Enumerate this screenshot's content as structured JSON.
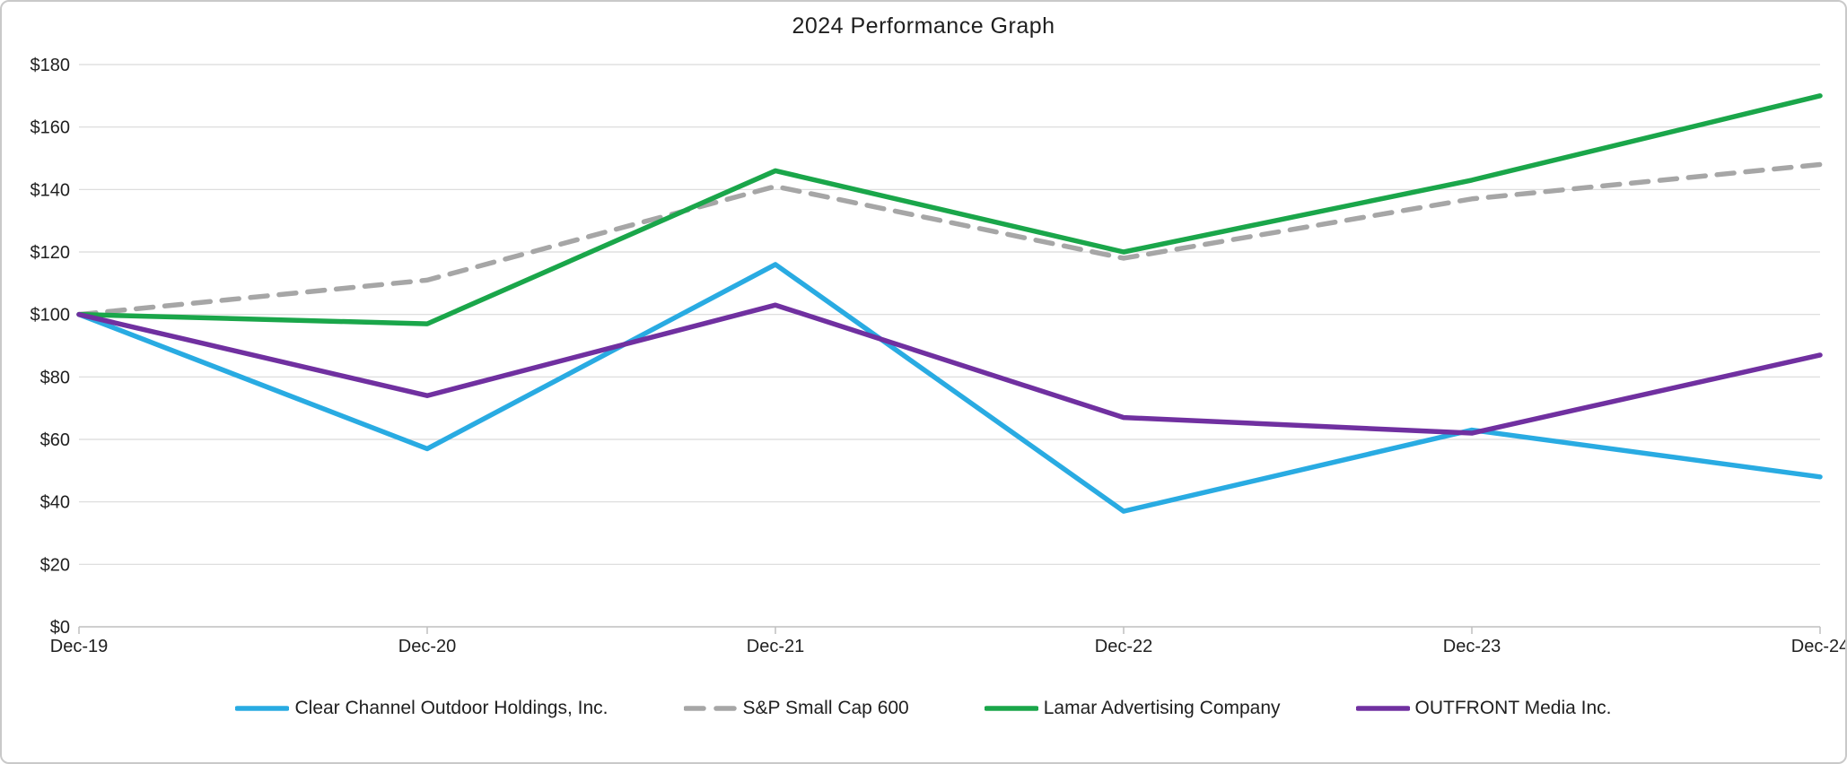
{
  "title": "2024 Performance Graph",
  "chart_data": {
    "type": "line",
    "title": "2024 Performance Graph",
    "xlabel": "",
    "ylabel": "",
    "categories": [
      "Dec-19",
      "Dec-20",
      "Dec-21",
      "Dec-22",
      "Dec-23",
      "Dec-24"
    ],
    "series": [
      {
        "name": "Clear Channel Outdoor Holdings, Inc.",
        "color": "#29ABE2",
        "style": "solid",
        "values": [
          100,
          57,
          116,
          37,
          63,
          48
        ]
      },
      {
        "name": "S&P Small Cap 600",
        "color": "#A6A6A6",
        "style": "dashed",
        "values": [
          100,
          111,
          141,
          118,
          137,
          148
        ]
      },
      {
        "name": "Lamar Advertising Company",
        "color": "#1AA64A",
        "style": "solid",
        "values": [
          100,
          97,
          146,
          120,
          143,
          170
        ]
      },
      {
        "name": "OUTFRONT Media Inc.",
        "color": "#7030A0",
        "style": "solid",
        "values": [
          100,
          74,
          103,
          67,
          62,
          87
        ]
      }
    ],
    "ylim": [
      0,
      180
    ],
    "ytick_step": 20,
    "ytick_labels": [
      "$0",
      "$20",
      "$40",
      "$60",
      "$80",
      "$100",
      "$120",
      "$140",
      "$160",
      "$180"
    ],
    "grid": true,
    "legend_position": "bottom"
  },
  "colors": {
    "gridline": "#D9D9D9",
    "axis_line": "#BFBFBF",
    "text": "#1F1F1F",
    "background": "#FFFFFF",
    "card_border": "#C9C9C9"
  }
}
